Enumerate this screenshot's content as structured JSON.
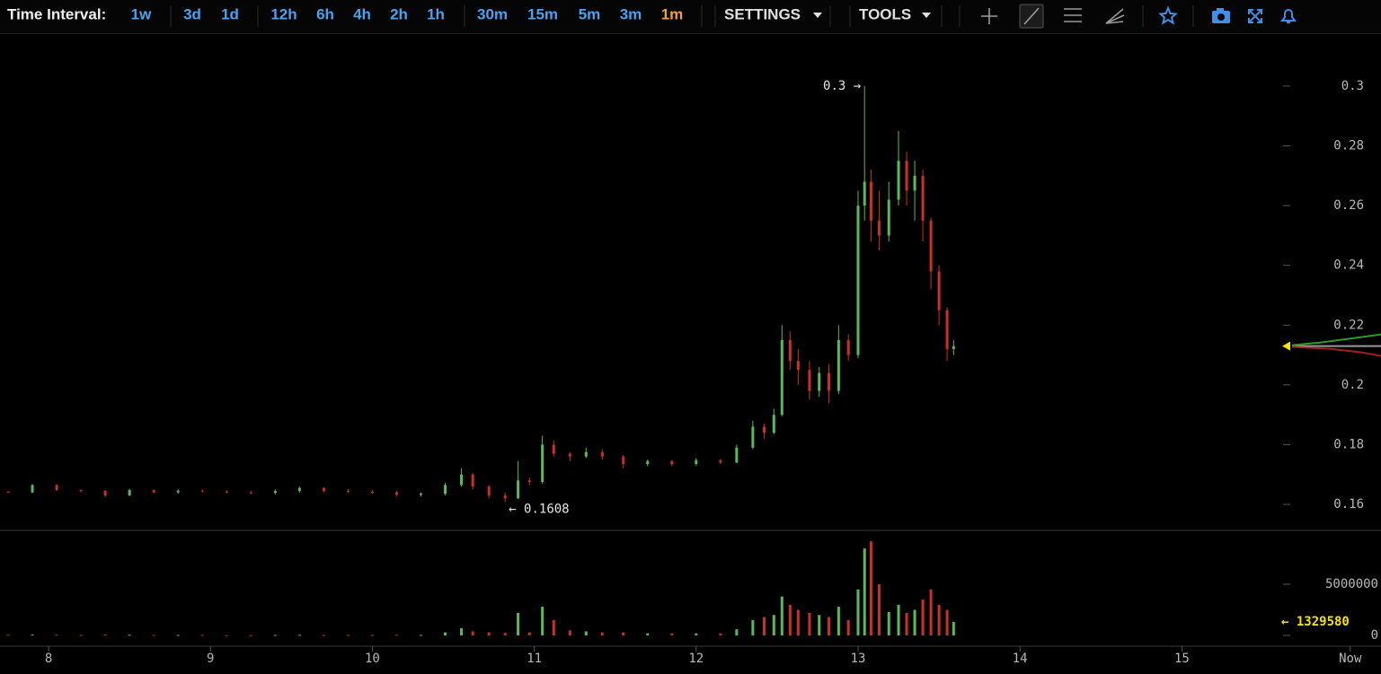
{
  "toolbar": {
    "label": "Time Interval:",
    "intervals": [
      "1w",
      "3d",
      "1d",
      "12h",
      "6h",
      "4h",
      "2h",
      "1h",
      "30m",
      "15m",
      "5m",
      "3m",
      "1m"
    ],
    "active_interval": 12,
    "menus": [
      "SETTINGS",
      "TOOLS"
    ]
  },
  "chart_data": {
    "type": "candlestick",
    "x": [
      7.75,
      7.9,
      8.05,
      8.2,
      8.35,
      8.5,
      8.65,
      8.8,
      8.95,
      9.1,
      9.25,
      9.4,
      9.55,
      9.7,
      9.85,
      10.0,
      10.15,
      10.3,
      10.45,
      10.55,
      10.62,
      10.72,
      10.82,
      10.9,
      10.97,
      11.05,
      11.12,
      11.22,
      11.32,
      11.42,
      11.55,
      11.7,
      11.85,
      12.0,
      12.15,
      12.25,
      12.35,
      12.42,
      12.48,
      12.53,
      12.58,
      12.63,
      12.7,
      12.76,
      12.82,
      12.88,
      12.94,
      13.0,
      13.04,
      13.08,
      13.13,
      13.19,
      13.25,
      13.3,
      13.35,
      13.4,
      13.45,
      13.5,
      13.55,
      13.59
    ],
    "open": [
      0.1642,
      0.164,
      0.1665,
      0.1648,
      0.1645,
      0.163,
      0.1648,
      0.164,
      0.1646,
      0.1643,
      0.164,
      0.1638,
      0.1645,
      0.1655,
      0.1645,
      0.1642,
      0.164,
      0.1632,
      0.1636,
      0.1665,
      0.17,
      0.166,
      0.163,
      0.162,
      0.168,
      0.1675,
      0.18,
      0.177,
      0.176,
      0.1775,
      0.176,
      0.1735,
      0.1745,
      0.1735,
      0.1748,
      0.174,
      0.179,
      0.186,
      0.184,
      0.19,
      0.215,
      0.208,
      0.205,
      0.198,
      0.204,
      0.198,
      0.215,
      0.21,
      0.26,
      0.268,
      0.255,
      0.25,
      0.262,
      0.275,
      0.265,
      0.27,
      0.255,
      0.238,
      0.225,
      0.212
    ],
    "high": [
      0.1645,
      0.1668,
      0.1668,
      0.165,
      0.1648,
      0.1652,
      0.165,
      0.165,
      0.165,
      0.1648,
      0.1645,
      0.165,
      0.166,
      0.1658,
      0.1652,
      0.1648,
      0.1645,
      0.164,
      0.1672,
      0.172,
      0.1705,
      0.1665,
      0.164,
      0.1745,
      0.169,
      0.183,
      0.1815,
      0.1775,
      0.179,
      0.1785,
      0.1765,
      0.175,
      0.1748,
      0.1755,
      0.1752,
      0.18,
      0.188,
      0.187,
      0.192,
      0.22,
      0.218,
      0.212,
      0.208,
      0.206,
      0.207,
      0.22,
      0.217,
      0.265,
      0.3,
      0.272,
      0.265,
      0.268,
      0.285,
      0.278,
      0.275,
      0.272,
      0.256,
      0.24,
      0.226,
      0.215
    ],
    "low": [
      0.1638,
      0.1638,
      0.1645,
      0.164,
      0.1625,
      0.1628,
      0.1638,
      0.1636,
      0.164,
      0.1638,
      0.1635,
      0.1634,
      0.164,
      0.164,
      0.1638,
      0.1636,
      0.1628,
      0.1626,
      0.163,
      0.166,
      0.165,
      0.162,
      0.1608,
      0.1618,
      0.1665,
      0.167,
      0.176,
      0.1745,
      0.1755,
      0.175,
      0.172,
      0.1728,
      0.1728,
      0.173,
      0.1735,
      0.1738,
      0.1785,
      0.182,
      0.1835,
      0.1895,
      0.205,
      0.2,
      0.195,
      0.196,
      0.194,
      0.197,
      0.208,
      0.209,
      0.255,
      0.248,
      0.245,
      0.248,
      0.26,
      0.26,
      0.255,
      0.248,
      0.232,
      0.22,
      0.208,
      0.21
    ],
    "close": [
      0.164,
      0.1665,
      0.1648,
      0.1645,
      0.163,
      0.1648,
      0.164,
      0.1646,
      0.1643,
      0.164,
      0.1638,
      0.1645,
      0.1655,
      0.1645,
      0.1642,
      0.164,
      0.1632,
      0.1636,
      0.1665,
      0.17,
      0.166,
      0.163,
      0.162,
      0.168,
      0.1675,
      0.18,
      0.177,
      0.176,
      0.1775,
      0.176,
      0.1735,
      0.1745,
      0.1735,
      0.1748,
      0.174,
      0.179,
      0.186,
      0.184,
      0.19,
      0.215,
      0.208,
      0.205,
      0.198,
      0.204,
      0.198,
      0.215,
      0.21,
      0.26,
      0.268,
      0.255,
      0.25,
      0.262,
      0.275,
      0.265,
      0.27,
      0.255,
      0.238,
      0.225,
      0.212,
      0.213
    ],
    "volume": [
      60000,
      90000,
      70000,
      50000,
      80000,
      60000,
      50000,
      40000,
      40000,
      30000,
      30000,
      40000,
      60000,
      50000,
      40000,
      40000,
      70000,
      50000,
      300000,
      700000,
      400000,
      300000,
      250000,
      2200000,
      300000,
      2800000,
      1500000,
      500000,
      400000,
      300000,
      300000,
      200000,
      200000,
      200000,
      200000,
      600000,
      1500000,
      1800000,
      2000000,
      3800000,
      3000000,
      2500000,
      2200000,
      2000000,
      1800000,
      2800000,
      1500000,
      4500000,
      8500000,
      9200000,
      5000000,
      2300000,
      3000000,
      2200000,
      2500000,
      3500000,
      4500000,
      3000000,
      2500000,
      1329580
    ],
    "up_color": "#5cb85c",
    "down_color": "#c9302c",
    "xlim": [
      7.7,
      16.23
    ],
    "xticks": [
      8,
      9,
      10,
      11,
      12,
      13,
      14,
      15,
      {
        "value": 16.04,
        "label": "Now"
      }
    ],
    "ylim": [
      0.1516,
      0.3174
    ],
    "yticks": [
      0.16,
      0.18,
      0.2,
      0.22,
      0.24,
      0.26,
      0.28,
      0.3
    ],
    "y2lim": [
      -1050000,
      10180000
    ],
    "y2ticks": [
      0,
      5000000
    ],
    "high_label": "0.3 →",
    "low_label": "← 0.1608",
    "volume_label": "← 1329580"
  }
}
